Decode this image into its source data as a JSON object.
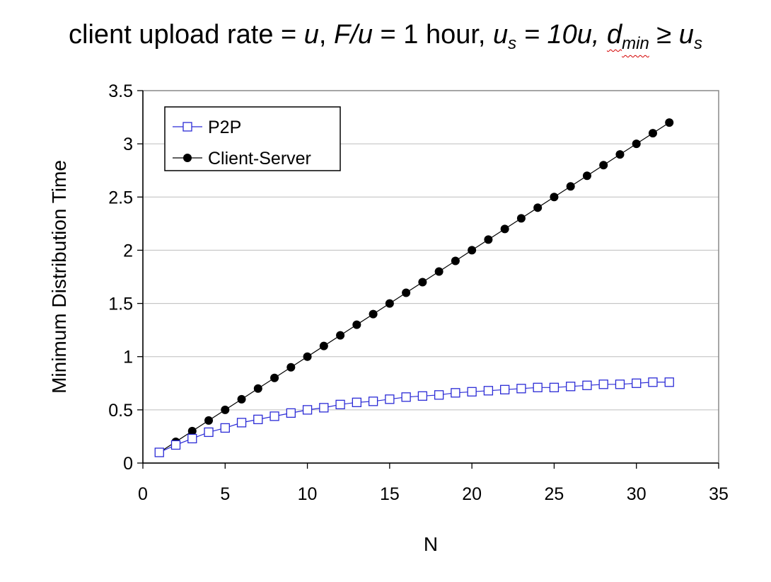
{
  "title": {
    "prefix": "client upload rate = ",
    "u": "u",
    "sep1": ",  ",
    "f_over_u": "F/u",
    "f_value": " = 1 hour,  ",
    "us_base": "u",
    "us_sub": "s",
    "us_value": " = 10u,  ",
    "d_base": "d",
    "d_sub": "min",
    "ge": " ≥ ",
    "us2_base": "u",
    "us2_sub": "s"
  },
  "chart_data": {
    "type": "line",
    "xlabel": "N",
    "ylabel": "Minimum Distribution Time",
    "xlim": [
      0,
      35
    ],
    "ylim": [
      0,
      3.5
    ],
    "xticks": [
      0,
      5,
      10,
      15,
      20,
      25,
      30,
      35
    ],
    "yticks": [
      0,
      0.5,
      1,
      1.5,
      2,
      2.5,
      3,
      3.5
    ],
    "ytick_labels": [
      "0",
      "0.5",
      "1",
      "1.5",
      "2",
      "2.5",
      "3",
      "3.5"
    ],
    "grid": "horizontal",
    "legend_position": "top-left",
    "x": [
      1,
      2,
      3,
      4,
      5,
      6,
      7,
      8,
      9,
      10,
      11,
      12,
      13,
      14,
      15,
      16,
      17,
      18,
      19,
      20,
      21,
      22,
      23,
      24,
      25,
      26,
      27,
      28,
      29,
      30,
      31,
      32
    ],
    "series": [
      {
        "name": "P2P",
        "color": "#2b2bd6",
        "marker": "open-square",
        "values": [
          0.1,
          0.17,
          0.23,
          0.29,
          0.33,
          0.38,
          0.41,
          0.44,
          0.47,
          0.5,
          0.52,
          0.55,
          0.57,
          0.58,
          0.6,
          0.62,
          0.63,
          0.64,
          0.66,
          0.67,
          0.68,
          0.69,
          0.7,
          0.71,
          0.71,
          0.72,
          0.73,
          0.74,
          0.74,
          0.75,
          0.76,
          0.76
        ]
      },
      {
        "name": "Client-Server",
        "color": "#000000",
        "marker": "filled-circle",
        "values": [
          0.1,
          0.2,
          0.3,
          0.4,
          0.5,
          0.6,
          0.7,
          0.8,
          0.9,
          1.0,
          1.1,
          1.2,
          1.3,
          1.4,
          1.5,
          1.6,
          1.7,
          1.8,
          1.9,
          2.0,
          2.1,
          2.2,
          2.3,
          2.4,
          2.5,
          2.6,
          2.7,
          2.8,
          2.9,
          3.0,
          3.1,
          3.2
        ]
      }
    ]
  }
}
